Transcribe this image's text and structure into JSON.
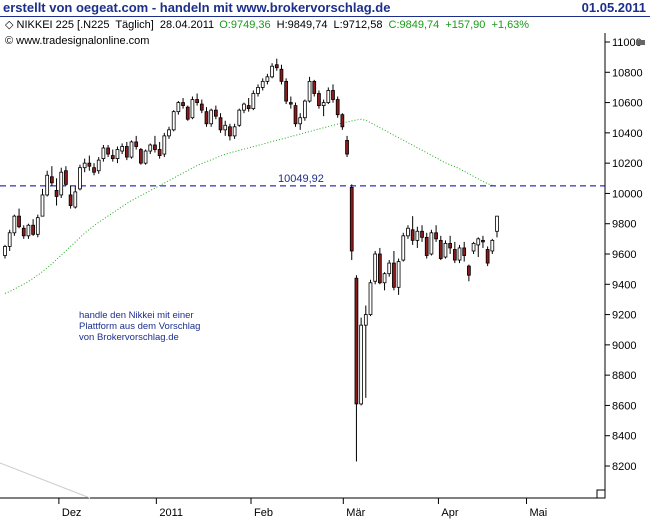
{
  "header": {
    "banner": "erstellt von oegeat.com - handeln mit www.brokervorschlag.de",
    "date": "01.05.2011"
  },
  "quote": {
    "symbol": "NIKKEI 225 [.N225",
    "interval": "Täglich]",
    "date": "28.04.2011",
    "open": "O:9749,36",
    "high": "H:9849,74",
    "low": "L:9712,58",
    "close": "C:9849,74",
    "change": "+157,90",
    "change_pct": "+1,63%"
  },
  "copyright": "© www.tradesignalonline.com",
  "annotation": {
    "lines": [
      "handle den Nikkei mit einer",
      "Plattform aus dem Vorschlag",
      "von Brokervorschlag.de"
    ]
  },
  "colors": {
    "header_text": "#1c2f8c",
    "grid_line": "#0000aa",
    "ma_line": "#22aa22",
    "bearish_candle": "#8b1a1a",
    "bullish_candle": "#ffffff",
    "change_text": "#1a9a1a"
  },
  "chart_data": {
    "type": "candlestick",
    "title": "NIKKEI 225 [.N225 Täglich]",
    "y_ticks": [
      8200,
      8400,
      8600,
      8800,
      9000,
      9200,
      9400,
      9600,
      9800,
      10000,
      10200,
      10400,
      10600,
      10800,
      11000
    ],
    "ylim": [
      8000,
      11080
    ],
    "x_ticks": [
      "Dez",
      "2011",
      "Feb",
      "Mär",
      "Apr",
      "Mai"
    ],
    "horizontal_line": {
      "value": 10049.92,
      "label": "10049,92"
    },
    "moving_average": [
      9340,
      9355,
      9375,
      9395,
      9415,
      9440,
      9465,
      9495,
      9525,
      9560,
      9595,
      9630,
      9665,
      9700,
      9735,
      9765,
      9795,
      9820,
      9845,
      9870,
      9895,
      9920,
      9945,
      9965,
      9985,
      10005,
      10025,
      10045,
      10065,
      10085,
      10105,
      10125,
      10145,
      10165,
      10185,
      10200,
      10215,
      10230,
      10245,
      10260,
      10270,
      10280,
      10290,
      10300,
      10310,
      10320,
      10330,
      10340,
      10350,
      10360,
      10370,
      10380,
      10390,
      10400,
      10410,
      10420,
      10430,
      10440,
      10450,
      10460,
      10468,
      10476,
      10484,
      10490,
      10480,
      10460,
      10440,
      10420,
      10400,
      10380,
      10360,
      10340,
      10320,
      10300,
      10280,
      10260,
      10240,
      10220,
      10200,
      10185,
      10170,
      10150,
      10130,
      10110,
      10090,
      10070,
      10055,
      10045
    ],
    "candles": [
      [
        9590,
        9660,
        9570,
        9650
      ],
      [
        9650,
        9760,
        9620,
        9740
      ],
      [
        9740,
        9860,
        9720,
        9850
      ],
      [
        9850,
        9900,
        9770,
        9780
      ],
      [
        9770,
        9790,
        9700,
        9720
      ],
      [
        9720,
        9800,
        9700,
        9790
      ],
      [
        9790,
        9830,
        9720,
        9730
      ],
      [
        9730,
        9860,
        9710,
        9840
      ],
      [
        9850,
        10030,
        9850,
        9990
      ],
      [
        9990,
        10150,
        9980,
        10120
      ],
      [
        10110,
        10180,
        10050,
        10070
      ],
      [
        10020,
        10100,
        9920,
        9980
      ],
      [
        9990,
        10170,
        9970,
        10140
      ],
      [
        10150,
        10180,
        10050,
        10060
      ],
      [
        9990,
        10050,
        9900,
        9920
      ],
      [
        9910,
        10050,
        9900,
        10010
      ],
      [
        10030,
        10190,
        10020,
        10170
      ],
      [
        10170,
        10230,
        10140,
        10200
      ],
      [
        10200,
        10250,
        10150,
        10180
      ],
      [
        10170,
        10200,
        10120,
        10140
      ],
      [
        10150,
        10240,
        10130,
        10220
      ],
      [
        10230,
        10320,
        10210,
        10300
      ],
      [
        10300,
        10320,
        10240,
        10260
      ],
      [
        10250,
        10290,
        10210,
        10230
      ],
      [
        10230,
        10310,
        10200,
        10290
      ],
      [
        10280,
        10330,
        10260,
        10310
      ],
      [
        10310,
        10340,
        10220,
        10240
      ],
      [
        10240,
        10350,
        10230,
        10340
      ],
      [
        10340,
        10380,
        10290,
        10310
      ],
      [
        10290,
        10300,
        10190,
        10200
      ],
      [
        10200,
        10290,
        10190,
        10280
      ],
      [
        10280,
        10330,
        10260,
        10320
      ],
      [
        10320,
        10380,
        10270,
        10290
      ],
      [
        10290,
        10340,
        10230,
        10250
      ],
      [
        10260,
        10400,
        10240,
        10380
      ],
      [
        10380,
        10440,
        10360,
        10420
      ],
      [
        10420,
        10550,
        10410,
        10540
      ],
      [
        10540,
        10610,
        10520,
        10600
      ],
      [
        10600,
        10630,
        10560,
        10580
      ],
      [
        10570,
        10580,
        10480,
        10490
      ],
      [
        10500,
        10640,
        10490,
        10620
      ],
      [
        10620,
        10660,
        10580,
        10600
      ],
      [
        10590,
        10620,
        10530,
        10550
      ],
      [
        10540,
        10570,
        10440,
        10460
      ],
      [
        10460,
        10560,
        10440,
        10550
      ],
      [
        10550,
        10580,
        10490,
        10510
      ],
      [
        10500,
        10530,
        10400,
        10420
      ],
      [
        10420,
        10480,
        10380,
        10450
      ],
      [
        10440,
        10460,
        10350,
        10380
      ],
      [
        10380,
        10460,
        10360,
        10440
      ],
      [
        10450,
        10560,
        10440,
        10550
      ],
      [
        10550,
        10600,
        10530,
        10590
      ],
      [
        10580,
        10630,
        10540,
        10560
      ],
      [
        10560,
        10680,
        10550,
        10660
      ],
      [
        10660,
        10720,
        10640,
        10700
      ],
      [
        10700,
        10760,
        10680,
        10740
      ],
      [
        10740,
        10790,
        10720,
        10770
      ],
      [
        10770,
        10860,
        10760,
        10840
      ],
      [
        10850,
        10890,
        10810,
        10830
      ],
      [
        10820,
        10850,
        10720,
        10740
      ],
      [
        10740,
        10760,
        10590,
        10610
      ],
      [
        10600,
        10640,
        10560,
        10590
      ],
      [
        10580,
        10600,
        10440,
        10460
      ],
      [
        10460,
        10530,
        10420,
        10500
      ],
      [
        10500,
        10620,
        10480,
        10610
      ],
      [
        10610,
        10770,
        10600,
        10740
      ],
      [
        10740,
        10750,
        10640,
        10660
      ],
      [
        10660,
        10680,
        10560,
        10580
      ],
      [
        10580,
        10620,
        10510,
        10600
      ],
      [
        10600,
        10700,
        10590,
        10680
      ],
      [
        10680,
        10720,
        10600,
        10620
      ],
      [
        10620,
        10640,
        10500,
        10520
      ],
      [
        10520,
        10530,
        10420,
        10440
      ],
      [
        10350,
        10380,
        10240,
        10260
      ],
      [
        10040,
        10060,
        9560,
        9620
      ],
      [
        9440,
        9460,
        8230,
        8610
      ],
      [
        8610,
        9180,
        8600,
        9130
      ],
      [
        9130,
        9260,
        8650,
        9200
      ],
      [
        9200,
        9430,
        9190,
        9410
      ],
      [
        9420,
        9620,
        9400,
        9600
      ],
      [
        9600,
        9640,
        9400,
        9410
      ],
      [
        9410,
        9480,
        9360,
        9470
      ],
      [
        9470,
        9560,
        9450,
        9540
      ],
      [
        9540,
        9620,
        9360,
        9380
      ],
      [
        9380,
        9570,
        9330,
        9550
      ],
      [
        9560,
        9740,
        9550,
        9720
      ],
      [
        9720,
        9790,
        9700,
        9770
      ],
      [
        9760,
        9850,
        9660,
        9690
      ],
      [
        9690,
        9780,
        9640,
        9750
      ],
      [
        9750,
        9790,
        9680,
        9710
      ],
      [
        9710,
        9740,
        9570,
        9590
      ],
      [
        9600,
        9760,
        9590,
        9740
      ],
      [
        9740,
        9790,
        9680,
        9700
      ],
      [
        9690,
        9720,
        9560,
        9570
      ],
      [
        9580,
        9690,
        9570,
        9670
      ],
      [
        9670,
        9720,
        9600,
        9640
      ],
      [
        9630,
        9680,
        9540,
        9560
      ],
      [
        9560,
        9660,
        9540,
        9640
      ],
      [
        9640,
        9680,
        9550,
        9590
      ],
      [
        9520,
        9530,
        9420,
        9460
      ],
      [
        9620,
        9680,
        9600,
        9670
      ],
      [
        9660,
        9710,
        9580,
        9700
      ],
      [
        9690,
        9720,
        9640,
        9680
      ],
      [
        9630,
        9650,
        9520,
        9540
      ],
      [
        9620,
        9700,
        9600,
        9690
      ],
      [
        9750,
        9850,
        9710,
        9850
      ]
    ]
  }
}
